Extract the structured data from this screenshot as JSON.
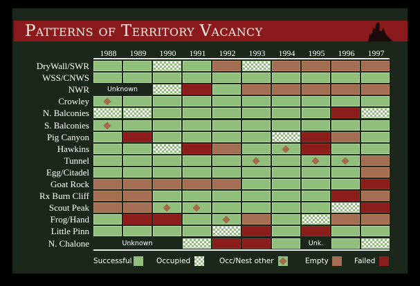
{
  "title": "Patterns of Territory Vacancy",
  "chart_data": {
    "type": "table",
    "title": "Patterns of Territory Vacancy",
    "columns": [
      "1988",
      "1989",
      "1990",
      "1991",
      "1992",
      "1993",
      "1994",
      "1995",
      "1996",
      "1997"
    ],
    "codes": {
      "S": "Successful",
      "O": "Occupied",
      "D": "Occ/Nest other",
      "E": "Empty",
      "F": "Failed",
      "U": "Unknown"
    },
    "colors": {
      "S": "#8fbf7a",
      "O": "#ffffff",
      "D": "#a4694d",
      "E": "#a46e53",
      "F": "#8b1e1b"
    },
    "rows": [
      {
        "name": "DryWall/SWR",
        "values": [
          "S",
          "S",
          "O",
          "S",
          "E",
          "O",
          "E",
          "E",
          "E",
          "E"
        ]
      },
      {
        "name": "WSS/CNWS",
        "values": [
          "S",
          "S",
          "S",
          "S",
          "S",
          "S",
          "S",
          "S",
          "S",
          "S"
        ]
      },
      {
        "name": "NWR",
        "values": [
          "U",
          "U",
          "O",
          "F",
          "S",
          "E",
          "E",
          "E",
          "E",
          "E"
        ],
        "unknown_label": "Unknown"
      },
      {
        "name": "Crowley",
        "values": [
          "D",
          "S",
          "S",
          "S",
          "S",
          "S",
          "S",
          "S",
          "S",
          "S"
        ]
      },
      {
        "name": "N. Balconies",
        "values": [
          "O",
          "O",
          "S",
          "S",
          "S",
          "S",
          "S",
          "S",
          "F",
          "O"
        ]
      },
      {
        "name": "S. Balconies",
        "values": [
          "D",
          "S",
          "S",
          "S",
          "S",
          "S",
          "S",
          "S",
          "S",
          "S"
        ]
      },
      {
        "name": "Pig Canyon",
        "values": [
          "S",
          "F",
          "S",
          "S",
          "S",
          "S",
          "O",
          "F",
          "E",
          "S"
        ]
      },
      {
        "name": "Hawkins",
        "values": [
          "S",
          "S",
          "O",
          "F",
          "E",
          "S",
          "D",
          "F",
          "S",
          "S"
        ]
      },
      {
        "name": "Tunnel",
        "values": [
          "S",
          "S",
          "S",
          "S",
          "S",
          "D",
          "S",
          "D",
          "D",
          "E"
        ]
      },
      {
        "name": "Egg/Citadel",
        "values": [
          "S",
          "S",
          "S",
          "S",
          "S",
          "S",
          "S",
          "S",
          "S",
          "E"
        ]
      },
      {
        "name": "Goat Rock",
        "values": [
          "E",
          "E",
          "E",
          "E",
          "E",
          "S",
          "S",
          "S",
          "S",
          "F"
        ]
      },
      {
        "name": "Rx Burn Cliff",
        "values": [
          "E",
          "E",
          "S",
          "S",
          "S",
          "S",
          "S",
          "S",
          "F",
          "E"
        ]
      },
      {
        "name": "Scout Peak",
        "values": [
          "E",
          "E",
          "D",
          "D",
          "S",
          "S",
          "S",
          "S",
          "O",
          "F"
        ]
      },
      {
        "name": "Frog/Hand",
        "values": [
          "S",
          "F",
          "F",
          "S",
          "D",
          "E",
          "S",
          "O",
          "E",
          "E"
        ]
      },
      {
        "name": "Little Pinn",
        "values": [
          "S",
          "S",
          "S",
          "S",
          "O",
          "F",
          "S",
          "F",
          "S",
          "S"
        ]
      },
      {
        "name": "N. Chalone",
        "values": [
          "U",
          "U",
          "U",
          "O",
          "F",
          "F",
          "S",
          "U",
          "S",
          "O"
        ],
        "unknown_label": "Unknown",
        "unknown_label_2": "Unk."
      }
    ]
  },
  "legend": [
    {
      "code": "S",
      "label": "Successful"
    },
    {
      "code": "O",
      "label": "Occupied"
    },
    {
      "code": "D",
      "label": "Occ/Nest other"
    },
    {
      "code": "E",
      "label": "Empty"
    },
    {
      "code": "F",
      "label": "Failed"
    }
  ]
}
